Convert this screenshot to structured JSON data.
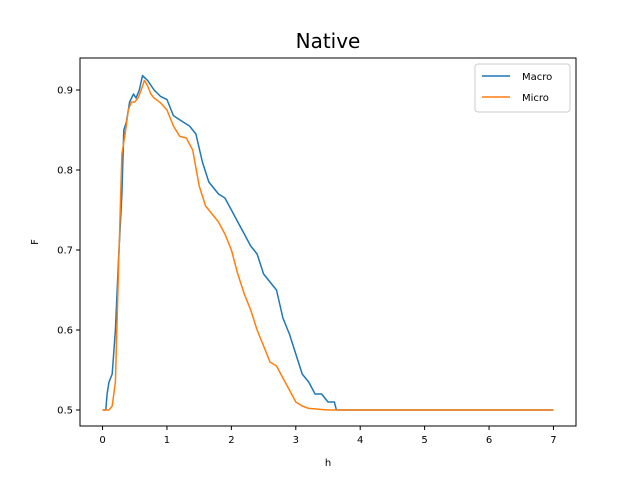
{
  "chart_data": {
    "type": "line",
    "title": "Native",
    "xlabel": "h",
    "ylabel": "F",
    "xlim": [
      -0.35,
      7.35
    ],
    "ylim": [
      0.48,
      0.94
    ],
    "xticks": [
      0,
      1,
      2,
      3,
      4,
      5,
      6,
      7
    ],
    "yticks": [
      0.5,
      0.6,
      0.7,
      0.8,
      0.9
    ],
    "grid": false,
    "legend_position": "top-right",
    "series": [
      {
        "name": "Macro",
        "color": "#1f77b4",
        "points": [
          [
            0,
            0.5
          ],
          [
            0.05,
            0.5
          ],
          [
            0.07,
            0.52
          ],
          [
            0.1,
            0.535
          ],
          [
            0.15,
            0.545
          ],
          [
            0.2,
            0.6
          ],
          [
            0.25,
            0.69
          ],
          [
            0.3,
            0.77
          ],
          [
            0.33,
            0.85
          ],
          [
            0.37,
            0.86
          ],
          [
            0.42,
            0.885
          ],
          [
            0.48,
            0.895
          ],
          [
            0.52,
            0.89
          ],
          [
            0.57,
            0.9
          ],
          [
            0.62,
            0.918
          ],
          [
            0.7,
            0.912
          ],
          [
            0.8,
            0.9
          ],
          [
            0.9,
            0.892
          ],
          [
            1.0,
            0.888
          ],
          [
            1.1,
            0.868
          ],
          [
            1.25,
            0.86
          ],
          [
            1.35,
            0.855
          ],
          [
            1.45,
            0.845
          ],
          [
            1.55,
            0.81
          ],
          [
            1.65,
            0.785
          ],
          [
            1.8,
            0.77
          ],
          [
            1.9,
            0.765
          ],
          [
            2.0,
            0.75
          ],
          [
            2.1,
            0.735
          ],
          [
            2.2,
            0.72
          ],
          [
            2.3,
            0.705
          ],
          [
            2.4,
            0.695
          ],
          [
            2.5,
            0.67
          ],
          [
            2.6,
            0.66
          ],
          [
            2.7,
            0.65
          ],
          [
            2.8,
            0.615
          ],
          [
            2.9,
            0.595
          ],
          [
            3.0,
            0.57
          ],
          [
            3.1,
            0.545
          ],
          [
            3.2,
            0.535
          ],
          [
            3.3,
            0.52
          ],
          [
            3.4,
            0.52
          ],
          [
            3.5,
            0.51
          ],
          [
            3.6,
            0.51
          ],
          [
            3.63,
            0.5
          ],
          [
            4,
            0.5
          ],
          [
            5,
            0.5
          ],
          [
            6,
            0.5
          ],
          [
            7,
            0.5
          ]
        ]
      },
      {
        "name": "Micro",
        "color": "#ff7f0e",
        "points": [
          [
            0,
            0.5
          ],
          [
            0.1,
            0.5
          ],
          [
            0.15,
            0.505
          ],
          [
            0.2,
            0.535
          ],
          [
            0.25,
            0.68
          ],
          [
            0.3,
            0.82
          ],
          [
            0.35,
            0.845
          ],
          [
            0.4,
            0.875
          ],
          [
            0.45,
            0.885
          ],
          [
            0.5,
            0.885
          ],
          [
            0.55,
            0.89
          ],
          [
            0.6,
            0.9
          ],
          [
            0.65,
            0.912
          ],
          [
            0.7,
            0.905
          ],
          [
            0.75,
            0.895
          ],
          [
            0.8,
            0.89
          ],
          [
            0.9,
            0.884
          ],
          [
            1.0,
            0.875
          ],
          [
            1.1,
            0.855
          ],
          [
            1.2,
            0.842
          ],
          [
            1.3,
            0.84
          ],
          [
            1.4,
            0.825
          ],
          [
            1.5,
            0.78
          ],
          [
            1.6,
            0.755
          ],
          [
            1.7,
            0.745
          ],
          [
            1.8,
            0.735
          ],
          [
            1.9,
            0.72
          ],
          [
            2.0,
            0.7
          ],
          [
            2.1,
            0.67
          ],
          [
            2.2,
            0.645
          ],
          [
            2.3,
            0.625
          ],
          [
            2.4,
            0.6
          ],
          [
            2.5,
            0.58
          ],
          [
            2.6,
            0.56
          ],
          [
            2.7,
            0.555
          ],
          [
            2.8,
            0.54
          ],
          [
            2.9,
            0.525
          ],
          [
            3.0,
            0.51
          ],
          [
            3.1,
            0.505
          ],
          [
            3.2,
            0.502
          ],
          [
            3.5,
            0.5
          ],
          [
            4,
            0.5
          ],
          [
            5,
            0.5
          ],
          [
            6,
            0.5
          ],
          [
            7,
            0.5
          ]
        ]
      }
    ]
  }
}
